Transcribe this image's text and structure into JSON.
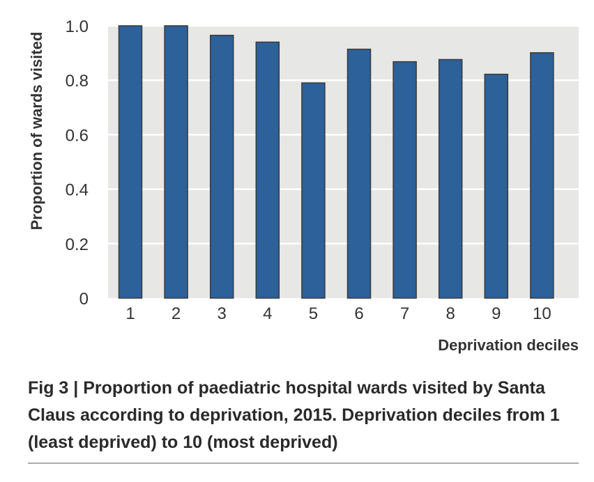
{
  "chart_data": {
    "type": "bar",
    "categories": [
      "1",
      "2",
      "3",
      "4",
      "5",
      "6",
      "7",
      "8",
      "9",
      "10"
    ],
    "values": [
      1.0,
      1.0,
      0.965,
      0.94,
      0.79,
      0.914,
      0.868,
      0.876,
      0.822,
      0.901
    ],
    "title": "",
    "xlabel": "Deprivation deciles",
    "ylabel": "Proportion of wards visited",
    "ylim": [
      0,
      1.0
    ],
    "yticks": [
      "0",
      "0.2",
      "0.4",
      "0.6",
      "0.8",
      "1.0"
    ],
    "grid": true,
    "colors": {
      "bar": "#2c6199",
      "bar_edge": "#3a3a3a",
      "background": "#e7e7e5",
      "grid": "#ffffff"
    }
  },
  "caption": {
    "label": "Fig 3",
    "separator": "|",
    "text": "Proportion of paediatric hospital wards visited by Santa Claus according to deprivation, 2015. Deprivation deciles from 1 (least deprived) to 10 (most deprived)"
  }
}
